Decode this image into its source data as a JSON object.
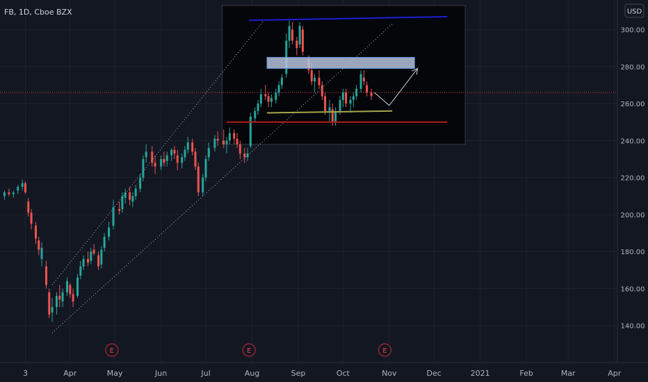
{
  "header": {
    "symbol_label": "FB, 1D, Cboe BZX"
  },
  "currency_button": "USD",
  "chart_data": {
    "type": "candlestick",
    "title": "FB, 1D, Cboe BZX",
    "symbol": "FB",
    "interval": "1D",
    "exchange": "Cboe BZX",
    "currency": "USD",
    "ylim": [
      120,
      316
    ],
    "y_ticks": [
      140,
      160,
      180,
      200,
      220,
      240,
      260,
      280,
      300
    ],
    "y_tick_labels": [
      "140.00",
      "160.00",
      "180.00",
      "200.00",
      "220.00",
      "240.00",
      "260.00",
      "280.00",
      "300.00"
    ],
    "x_range": [
      "2020-02-14",
      "2021-04-03"
    ],
    "x_ticks": [
      {
        "date": "2020-03-02",
        "label": "3"
      },
      {
        "date": "2020-04-01",
        "label": "Apr"
      },
      {
        "date": "2020-05-01",
        "label": "May"
      },
      {
        "date": "2020-06-01",
        "label": "Jun"
      },
      {
        "date": "2020-07-01",
        "label": "Jul"
      },
      {
        "date": "2020-08-01",
        "label": "Aug"
      },
      {
        "date": "2020-09-01",
        "label": "Sep"
      },
      {
        "date": "2020-10-01",
        "label": "Oct"
      },
      {
        "date": "2020-11-01",
        "label": "Nov"
      },
      {
        "date": "2020-12-01",
        "label": "Dec"
      },
      {
        "date": "2021-01-01",
        "label": "2021"
      },
      {
        "date": "2021-02-01",
        "label": "Feb"
      },
      {
        "date": "2021-03-01",
        "label": "Mar"
      },
      {
        "date": "2021-04-01",
        "label": "Apr"
      }
    ],
    "earnings_markers": [
      {
        "date": "2020-04-29",
        "label": "E"
      },
      {
        "date": "2020-07-30",
        "label": "E"
      },
      {
        "date": "2020-10-29",
        "label": "E"
      }
    ],
    "last_price_line": 266,
    "candles": [
      [
        "2020-02-17",
        210,
        213,
        208,
        212
      ],
      [
        "2020-02-20",
        212,
        214,
        210,
        211
      ],
      [
        "2020-02-23",
        211,
        213,
        209,
        212
      ],
      [
        "2020-02-26",
        213,
        216,
        211,
        215
      ],
      [
        "2020-02-29",
        215,
        219,
        213,
        217
      ],
      [
        "2020-03-02",
        217,
        218,
        211,
        212
      ],
      [
        "2020-03-04",
        207,
        209,
        199,
        201
      ],
      [
        "2020-03-06",
        201,
        203,
        192,
        195
      ],
      [
        "2020-03-09",
        194,
        196,
        184,
        187
      ],
      [
        "2020-03-11",
        186,
        188,
        178,
        181
      ],
      [
        "2020-03-13",
        176,
        185,
        172,
        182
      ],
      [
        "2020-03-16",
        172,
        175,
        160,
        162
      ],
      [
        "2020-03-18",
        158,
        160,
        144,
        146
      ],
      [
        "2020-03-20",
        147,
        155,
        142,
        150
      ],
      [
        "2020-03-23",
        150,
        158,
        146,
        156
      ],
      [
        "2020-03-25",
        156,
        162,
        150,
        154
      ],
      [
        "2020-03-27",
        153,
        160,
        150,
        158
      ],
      [
        "2020-03-30",
        158,
        166,
        156,
        164
      ],
      [
        "2020-04-01",
        162,
        163,
        155,
        157
      ],
      [
        "2020-04-03",
        157,
        160,
        150,
        153
      ],
      [
        "2020-04-06",
        156,
        168,
        155,
        166
      ],
      [
        "2020-04-08",
        167,
        175,
        165,
        172
      ],
      [
        "2020-04-10",
        172,
        178,
        170,
        176
      ],
      [
        "2020-04-13",
        176,
        180,
        172,
        174
      ],
      [
        "2020-04-15",
        175,
        182,
        173,
        180
      ],
      [
        "2020-04-17",
        181,
        184,
        178,
        179
      ],
      [
        "2020-04-20",
        178,
        180,
        170,
        172
      ],
      [
        "2020-04-22",
        173,
        183,
        171,
        181
      ],
      [
        "2020-04-24",
        182,
        190,
        180,
        188
      ],
      [
        "2020-04-27",
        188,
        196,
        186,
        193
      ],
      [
        "2020-04-30",
        194,
        208,
        192,
        204
      ],
      [
        "2020-05-04",
        203,
        207,
        200,
        202
      ],
      [
        "2020-05-06",
        203,
        212,
        201,
        210
      ],
      [
        "2020-05-08",
        209,
        214,
        206,
        212
      ],
      [
        "2020-05-11",
        212,
        215,
        205,
        208
      ],
      [
        "2020-05-13",
        207,
        212,
        204,
        210
      ],
      [
        "2020-05-15",
        210,
        216,
        208,
        214
      ],
      [
        "2020-05-18",
        214,
        222,
        212,
        220
      ],
      [
        "2020-05-20",
        220,
        232,
        218,
        230
      ],
      [
        "2020-05-22",
        231,
        238,
        228,
        234
      ],
      [
        "2020-05-26",
        234,
        237,
        226,
        228
      ],
      [
        "2020-05-28",
        228,
        232,
        222,
        226
      ],
      [
        "2020-06-01",
        226,
        232,
        224,
        230
      ],
      [
        "2020-06-03",
        230,
        234,
        226,
        228
      ],
      [
        "2020-06-05",
        229,
        234,
        226,
        232
      ],
      [
        "2020-06-08",
        232,
        236,
        229,
        235
      ],
      [
        "2020-06-10",
        235,
        237,
        230,
        233
      ],
      [
        "2020-06-12",
        232,
        235,
        224,
        228
      ],
      [
        "2020-06-15",
        228,
        233,
        225,
        231
      ],
      [
        "2020-06-17",
        231,
        237,
        229,
        235
      ],
      [
        "2020-06-19",
        235,
        242,
        233,
        239
      ],
      [
        "2020-06-22",
        239,
        241,
        232,
        234
      ],
      [
        "2020-06-24",
        234,
        236,
        224,
        226
      ],
      [
        "2020-06-26",
        226,
        228,
        210,
        212
      ],
      [
        "2020-06-29",
        212,
        222,
        210,
        220
      ],
      [
        "2020-07-01",
        220,
        232,
        218,
        230
      ],
      [
        "2020-07-03",
        231,
        239,
        229,
        236
      ],
      [
        "2020-07-07",
        236,
        243,
        234,
        241
      ],
      [
        "2020-07-09",
        241,
        245,
        237,
        240
      ],
      [
        "2020-07-13",
        240,
        246,
        236,
        238
      ],
      [
        "2020-07-15",
        238,
        242,
        233,
        240
      ],
      [
        "2020-07-17",
        240,
        247,
        238,
        244
      ],
      [
        "2020-07-20",
        244,
        246,
        238,
        241
      ],
      [
        "2020-07-22",
        241,
        244,
        236,
        238
      ],
      [
        "2020-07-24",
        238,
        240,
        230,
        233
      ],
      [
        "2020-07-27",
        233,
        236,
        228,
        231
      ],
      [
        "2020-07-29",
        231,
        236,
        229,
        233
      ],
      [
        "2020-07-31",
        237,
        255,
        236,
        253
      ],
      [
        "2020-08-03",
        252,
        258,
        250,
        256
      ],
      [
        "2020-08-05",
        256,
        262,
        254,
        260
      ],
      [
        "2020-08-07",
        260,
        268,
        258,
        265
      ],
      [
        "2020-08-10",
        265,
        270,
        262,
        264
      ],
      [
        "2020-08-12",
        264,
        266,
        258,
        261
      ],
      [
        "2020-08-14",
        261,
        265,
        258,
        263
      ],
      [
        "2020-08-17",
        262,
        268,
        260,
        266
      ],
      [
        "2020-08-19",
        266,
        272,
        264,
        270
      ],
      [
        "2020-08-21",
        270,
        276,
        268,
        274
      ],
      [
        "2020-08-24",
        276,
        298,
        274,
        294
      ],
      [
        "2020-08-26",
        294,
        305,
        290,
        302
      ],
      [
        "2020-08-28",
        300,
        304,
        292,
        294
      ],
      [
        "2020-08-31",
        294,
        296,
        286,
        290
      ],
      [
        "2020-09-02",
        292,
        304,
        290,
        302
      ],
      [
        "2020-09-04",
        300,
        302,
        286,
        288
      ],
      [
        "2020-09-08",
        284,
        286,
        276,
        278
      ],
      [
        "2020-09-10",
        278,
        282,
        270,
        272
      ],
      [
        "2020-09-12",
        272,
        276,
        266,
        274
      ],
      [
        "2020-09-15",
        274,
        278,
        268,
        270
      ],
      [
        "2020-09-17",
        270,
        272,
        262,
        264
      ],
      [
        "2020-09-19",
        264,
        266,
        254,
        256
      ],
      [
        "2020-09-22",
        256,
        262,
        250,
        258
      ],
      [
        "2020-09-24",
        257,
        260,
        248,
        250
      ],
      [
        "2020-09-26",
        250,
        258,
        248,
        256
      ],
      [
        "2020-09-29",
        256,
        264,
        254,
        262
      ],
      [
        "2020-10-01",
        262,
        268,
        258,
        266
      ],
      [
        "2020-10-03",
        266,
        268,
        258,
        260
      ],
      [
        "2020-10-06",
        260,
        264,
        255,
        262
      ],
      [
        "2020-10-08",
        262,
        266,
        258,
        264
      ],
      [
        "2020-10-10",
        264,
        270,
        262,
        268
      ],
      [
        "2020-10-13",
        268,
        278,
        266,
        276
      ],
      [
        "2020-10-15",
        274,
        278,
        270,
        272
      ],
      [
        "2020-10-17",
        270,
        272,
        264,
        266
      ],
      [
        "2020-10-20",
        266,
        268,
        262,
        264
      ]
    ],
    "drawings": {
      "upper_channel_line": {
        "from": {
          "date": "2020-03-20",
          "price": 162
        },
        "to": {
          "date": "2020-08-10",
          "price": 306
        }
      },
      "lower_channel_line": {
        "from": {
          "date": "2020-03-20",
          "price": 136
        },
        "to": {
          "date": "2020-11-03",
          "price": 303
        }
      },
      "top_resistance_line": {
        "from": {
          "date": "2020-07-30",
          "price": 305
        },
        "to": {
          "date": "2020-12-10",
          "price": 307
        }
      },
      "support_line": {
        "from": {
          "date": "2020-07-15",
          "price": 250
        },
        "to": {
          "date": "2020-12-10",
          "price": 250
        }
      },
      "pivot_line": {
        "from": {
          "date": "2020-08-11",
          "price": 255
        },
        "to": {
          "date": "2020-11-03",
          "price": 256
        }
      },
      "target_zone": {
        "from": {
          "date": "2020-08-11",
          "price": 285
        },
        "to": {
          "date": "2020-11-18",
          "price": 279
        }
      },
      "highlight_box": {
        "from": {
          "date": "2020-07-12",
          "price": 313
        },
        "to": {
          "date": "2020-12-22",
          "price": 238
        }
      },
      "projection_path": [
        {
          "date": "2020-10-22",
          "price": 266
        },
        {
          "date": "2020-11-01",
          "price": 259
        },
        {
          "date": "2020-11-20",
          "price": 279
        }
      ]
    }
  }
}
